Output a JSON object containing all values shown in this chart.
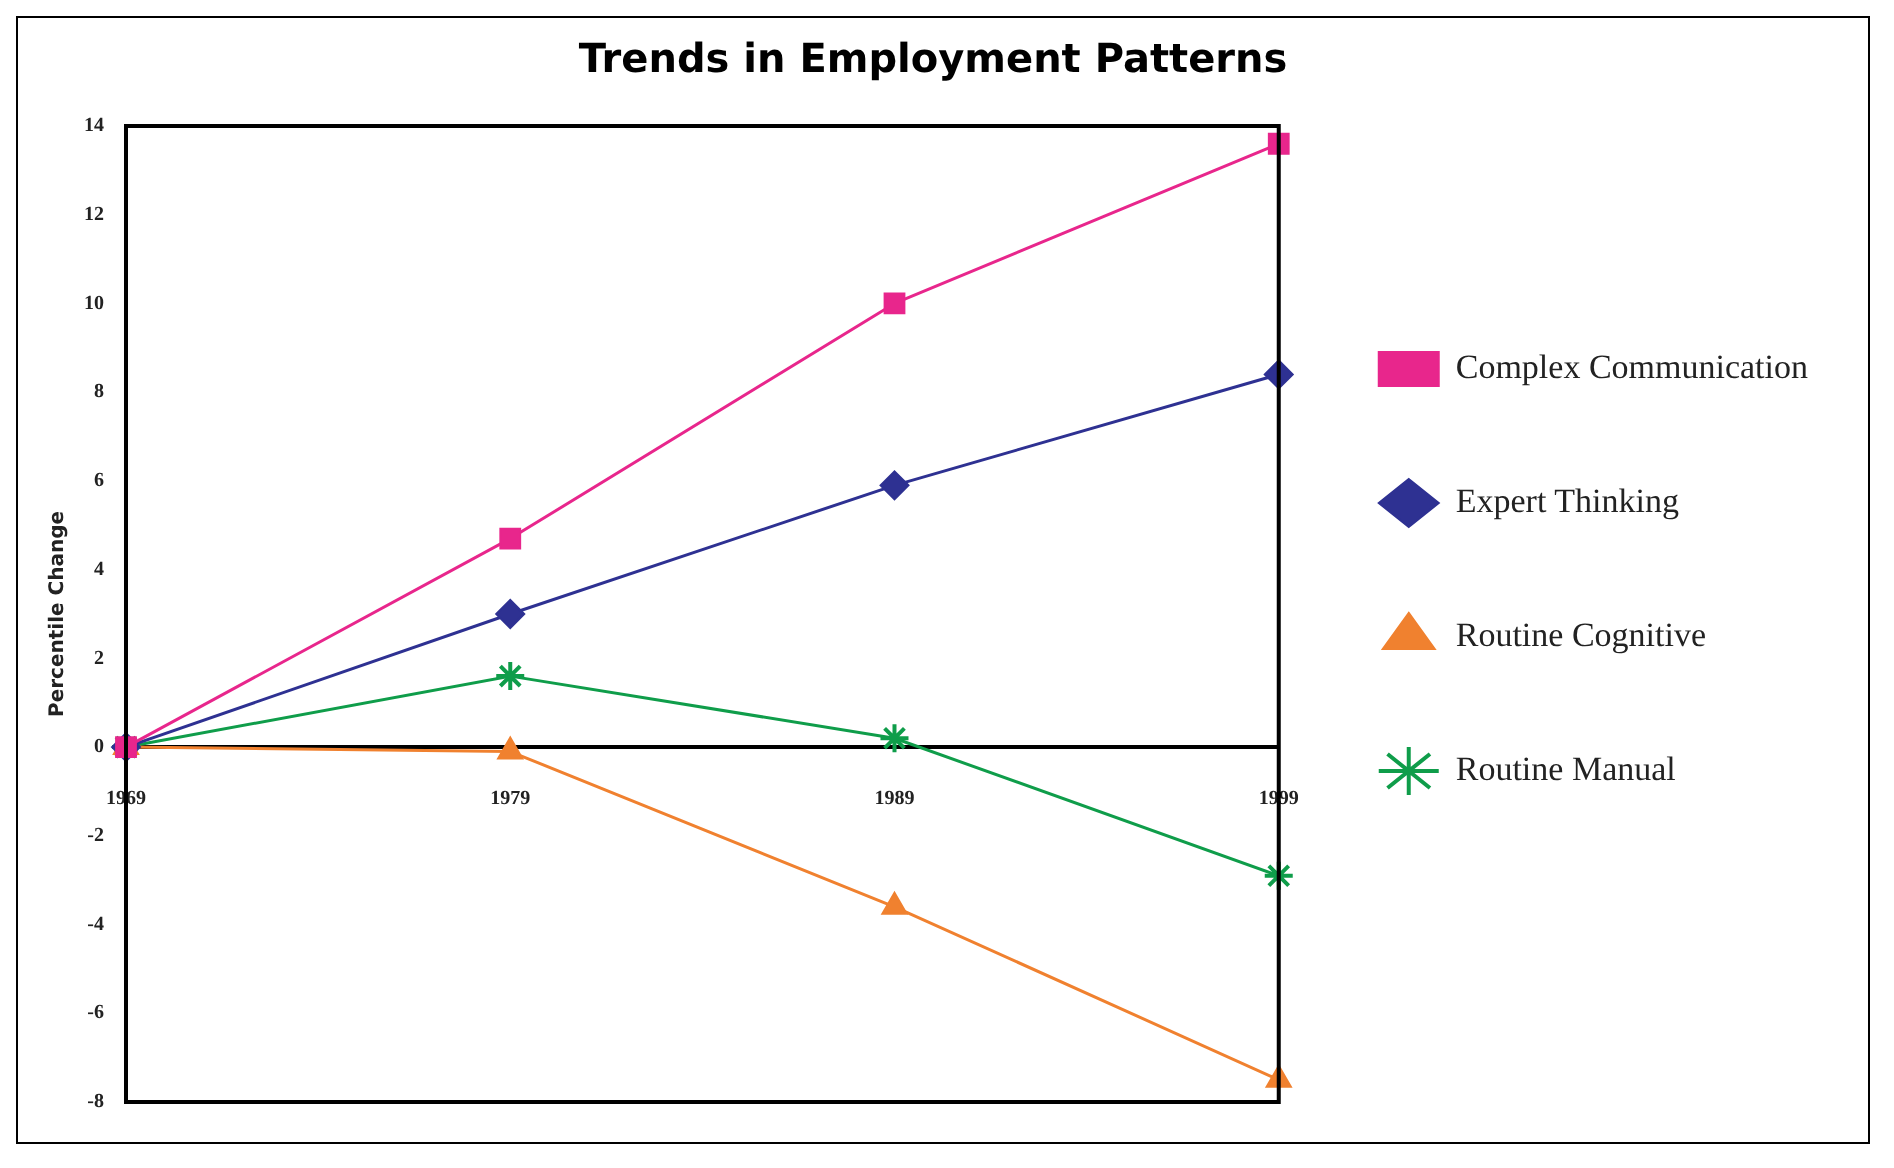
{
  "chart_data": {
    "type": "line",
    "title": "Trends in Employment Patterns",
    "ylabel": "Percentile Change",
    "categories": [
      "1969",
      "1979",
      "1989",
      "1999"
    ],
    "series": [
      {
        "name": "Complex Communication",
        "color": "#e8268c",
        "marker": "square",
        "values": [
          0,
          4.7,
          10,
          13.6
        ]
      },
      {
        "name": "Expert Thinking",
        "color": "#2e3192",
        "marker": "diamond",
        "values": [
          0,
          3.0,
          5.9,
          8.4
        ]
      },
      {
        "name": "Routine Cognitive",
        "color": "#f0812f",
        "marker": "triangle",
        "values": [
          0,
          -0.1,
          -3.6,
          -7.5
        ]
      },
      {
        "name": "Routine Manual",
        "color": "#0f9d4a",
        "marker": "cross",
        "values": [
          0,
          1.6,
          0.2,
          -2.9
        ]
      }
    ],
    "ylim": [
      -8,
      14
    ],
    "yticks": [
      -8,
      -6,
      -4,
      -2,
      0,
      2,
      4,
      6,
      8,
      10,
      12,
      14
    ],
    "grid": false,
    "legend": "right",
    "line_style": "solid"
  }
}
